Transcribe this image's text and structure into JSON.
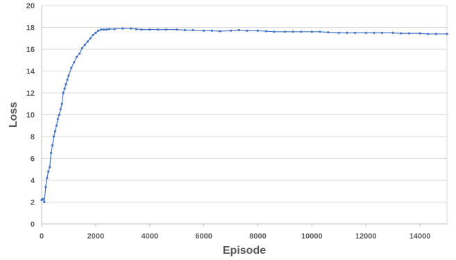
{
  "chart_data": {
    "type": "line",
    "title": "",
    "xlabel": "Episode",
    "ylabel": "Loss",
    "xlim": [
      0,
      15000
    ],
    "ylim": [
      0,
      20
    ],
    "x_ticks": [
      0,
      2000,
      4000,
      6000,
      8000,
      10000,
      12000,
      14000
    ],
    "y_ticks": [
      0,
      2,
      4,
      6,
      8,
      10,
      12,
      14,
      16,
      18,
      20
    ],
    "grid": true,
    "legend": "none",
    "color": "#4472c4",
    "series": [
      {
        "x": [
          0,
          50,
          100,
          150,
          200,
          250,
          300,
          350,
          400,
          450,
          500,
          550,
          600,
          650,
          700,
          750,
          800,
          850,
          900,
          950,
          1000,
          1100,
          1200,
          1300,
          1400,
          1500,
          1600,
          1700,
          1800,
          1900,
          2000,
          2100,
          2200,
          2300,
          2400,
          2500,
          2700,
          3000,
          3300,
          3500,
          3700,
          4000,
          4300,
          4600,
          5000,
          5300,
          5600,
          6000,
          6300,
          6600,
          7000,
          7300,
          7600,
          8000,
          8300,
          8600,
          9000,
          9300,
          9600,
          10000,
          10300,
          10600,
          11000,
          11300,
          11600,
          12000,
          12300,
          12600,
          13000,
          13300,
          13600,
          14000,
          14300,
          14600,
          15000
        ],
        "values": [
          2.2,
          2.3,
          2.0,
          3.4,
          4.2,
          4.8,
          5.2,
          6.5,
          7.2,
          8.0,
          8.5,
          9.0,
          9.6,
          10.0,
          10.5,
          11.0,
          12.0,
          12.4,
          12.8,
          13.2,
          13.6,
          14.3,
          14.8,
          15.3,
          15.6,
          16.1,
          16.4,
          16.7,
          17.0,
          17.3,
          17.5,
          17.7,
          17.8,
          17.8,
          17.8,
          17.85,
          17.85,
          17.9,
          17.9,
          17.85,
          17.8,
          17.8,
          17.8,
          17.8,
          17.8,
          17.75,
          17.75,
          17.7,
          17.7,
          17.65,
          17.7,
          17.75,
          17.7,
          17.7,
          17.65,
          17.6,
          17.6,
          17.6,
          17.6,
          17.6,
          17.6,
          17.55,
          17.5,
          17.5,
          17.5,
          17.5,
          17.5,
          17.5,
          17.5,
          17.45,
          17.45,
          17.45,
          17.4,
          17.4,
          17.4
        ]
      }
    ]
  }
}
